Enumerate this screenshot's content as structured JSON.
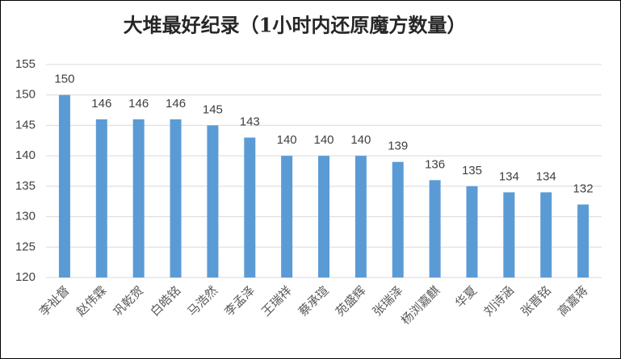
{
  "chart_data": {
    "type": "bar",
    "title": "大堆最好纪录（1小时内还原魔方数量）",
    "categories": [
      "李祉督",
      "赵伟霖",
      "巩乾贺",
      "白皓铭",
      "马浩然",
      "李孟泽",
      "王瑞祥",
      "蔡承瑄",
      "苑盛辉",
      "张瑞泽",
      "杨浏嘉麒",
      "华夏",
      "刘诗涵",
      "张晋铭",
      "高嘉蒋"
    ],
    "values": [
      150,
      146,
      146,
      146,
      145,
      143,
      140,
      140,
      140,
      139,
      136,
      135,
      134,
      134,
      132
    ],
    "color": "#5b9bd5",
    "ylim": [
      120,
      155
    ],
    "yticks": [
      120,
      125,
      130,
      135,
      140,
      145,
      150,
      155
    ],
    "grid": true,
    "data_labels": true
  }
}
